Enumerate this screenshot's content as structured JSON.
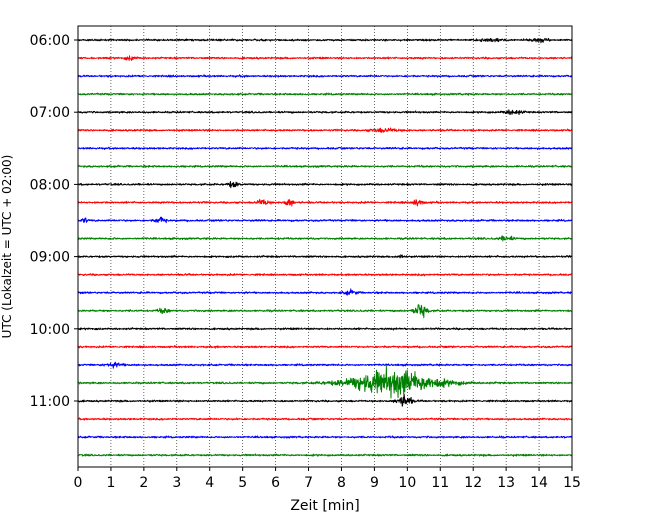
{
  "chart_data": {
    "type": "line",
    "xlabel": "Zeit  [min]",
    "ylabel": "UTC (Lokalzeit = UTC + 02:00)",
    "xlim": [
      0,
      15
    ],
    "x_ticks": [
      0,
      1,
      2,
      3,
      4,
      5,
      6,
      7,
      8,
      9,
      10,
      11,
      12,
      13,
      14,
      15
    ],
    "y_tick_labels": [
      "06:00",
      "07:00",
      "08:00",
      "09:00",
      "10:00",
      "11:00"
    ],
    "grid": "vertical-dotted",
    "trace_start_times": [
      "06:00",
      "06:15",
      "06:30",
      "06:45",
      "07:00",
      "07:15",
      "07:30",
      "07:45",
      "08:00",
      "08:15",
      "08:30",
      "08:45",
      "09:00",
      "09:15",
      "09:30",
      "09:45",
      "10:00",
      "10:15",
      "10:30",
      "10:45",
      "11:00",
      "11:15",
      "11:30",
      "11:45"
    ],
    "trace_colors": [
      "#000000",
      "#ff0000",
      "#0000ff",
      "#008000"
    ],
    "events": [
      {
        "trace": 0,
        "t": 12.5,
        "amp": 0.25,
        "dur": 0.6
      },
      {
        "trace": 0,
        "t": 14.0,
        "amp": 0.25,
        "dur": 0.5
      },
      {
        "trace": 1,
        "t": 1.6,
        "amp": 0.3,
        "dur": 0.3
      },
      {
        "trace": 4,
        "t": 13.2,
        "amp": 0.35,
        "dur": 0.5
      },
      {
        "trace": 5,
        "t": 9.3,
        "amp": 0.25,
        "dur": 0.8
      },
      {
        "trace": 8,
        "t": 4.7,
        "amp": 0.45,
        "dur": 0.3
      },
      {
        "trace": 9,
        "t": 5.6,
        "amp": 0.35,
        "dur": 0.4
      },
      {
        "trace": 9,
        "t": 6.4,
        "amp": 0.5,
        "dur": 0.3
      },
      {
        "trace": 9,
        "t": 10.3,
        "amp": 0.5,
        "dur": 0.3
      },
      {
        "trace": 10,
        "t": 0.2,
        "amp": 0.4,
        "dur": 0.15
      },
      {
        "trace": 10,
        "t": 2.5,
        "amp": 0.45,
        "dur": 0.3
      },
      {
        "trace": 11,
        "t": 13.0,
        "amp": 0.35,
        "dur": 0.4
      },
      {
        "trace": 12,
        "t": 9.8,
        "amp": 0.3,
        "dur": 0.2
      },
      {
        "trace": 14,
        "t": 8.3,
        "amp": 0.3,
        "dur": 0.4
      },
      {
        "trace": 15,
        "t": 2.6,
        "amp": 0.35,
        "dur": 0.3
      },
      {
        "trace": 15,
        "t": 10.4,
        "amp": 1.1,
        "dur": 0.35
      },
      {
        "trace": 18,
        "t": 1.1,
        "amp": 0.3,
        "dur": 0.5
      },
      {
        "trace": 19,
        "t": 9.6,
        "amp": 1.8,
        "dur": 2.6
      },
      {
        "trace": 20,
        "t": 9.9,
        "amp": 0.9,
        "dur": 0.4
      }
    ]
  }
}
